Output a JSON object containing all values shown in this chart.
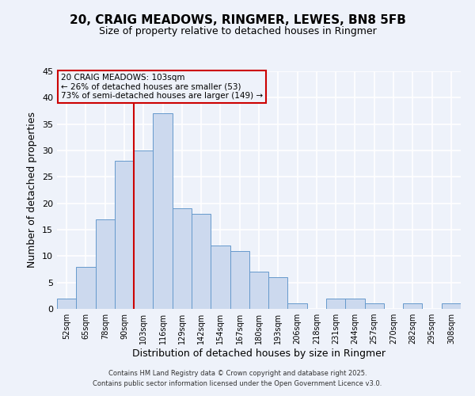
{
  "title": "20, CRAIG MEADOWS, RINGMER, LEWES, BN8 5FB",
  "subtitle": "Size of property relative to detached houses in Ringmer",
  "xlabel": "Distribution of detached houses by size in Ringmer",
  "ylabel": "Number of detached properties",
  "bin_labels": [
    "52sqm",
    "65sqm",
    "78sqm",
    "90sqm",
    "103sqm",
    "116sqm",
    "129sqm",
    "142sqm",
    "154sqm",
    "167sqm",
    "180sqm",
    "193sqm",
    "206sqm",
    "218sqm",
    "231sqm",
    "244sqm",
    "257sqm",
    "270sqm",
    "282sqm",
    "295sqm",
    "308sqm"
  ],
  "bar_values": [
    2,
    8,
    17,
    28,
    30,
    37,
    19,
    18,
    12,
    11,
    7,
    6,
    1,
    0,
    2,
    2,
    1,
    0,
    1,
    0,
    1
  ],
  "bar_color": "#ccd9ee",
  "bar_edge_color": "#6699cc",
  "vline_x_index": 4,
  "vline_color": "#cc0000",
  "annotation_title": "20 CRAIG MEADOWS: 103sqm",
  "annotation_line1": "← 26% of detached houses are smaller (53)",
  "annotation_line2": "73% of semi-detached houses are larger (149) →",
  "annotation_box_color": "#cc0000",
  "ylim": [
    0,
    45
  ],
  "yticks": [
    0,
    5,
    10,
    15,
    20,
    25,
    30,
    35,
    40,
    45
  ],
  "footer_line1": "Contains HM Land Registry data © Crown copyright and database right 2025.",
  "footer_line2": "Contains public sector information licensed under the Open Government Licence v3.0.",
  "bg_color": "#eef2fa",
  "grid_color": "#ffffff",
  "title_fontsize": 11,
  "subtitle_fontsize": 9,
  "figsize": [
    6.0,
    5.0
  ],
  "dpi": 100
}
